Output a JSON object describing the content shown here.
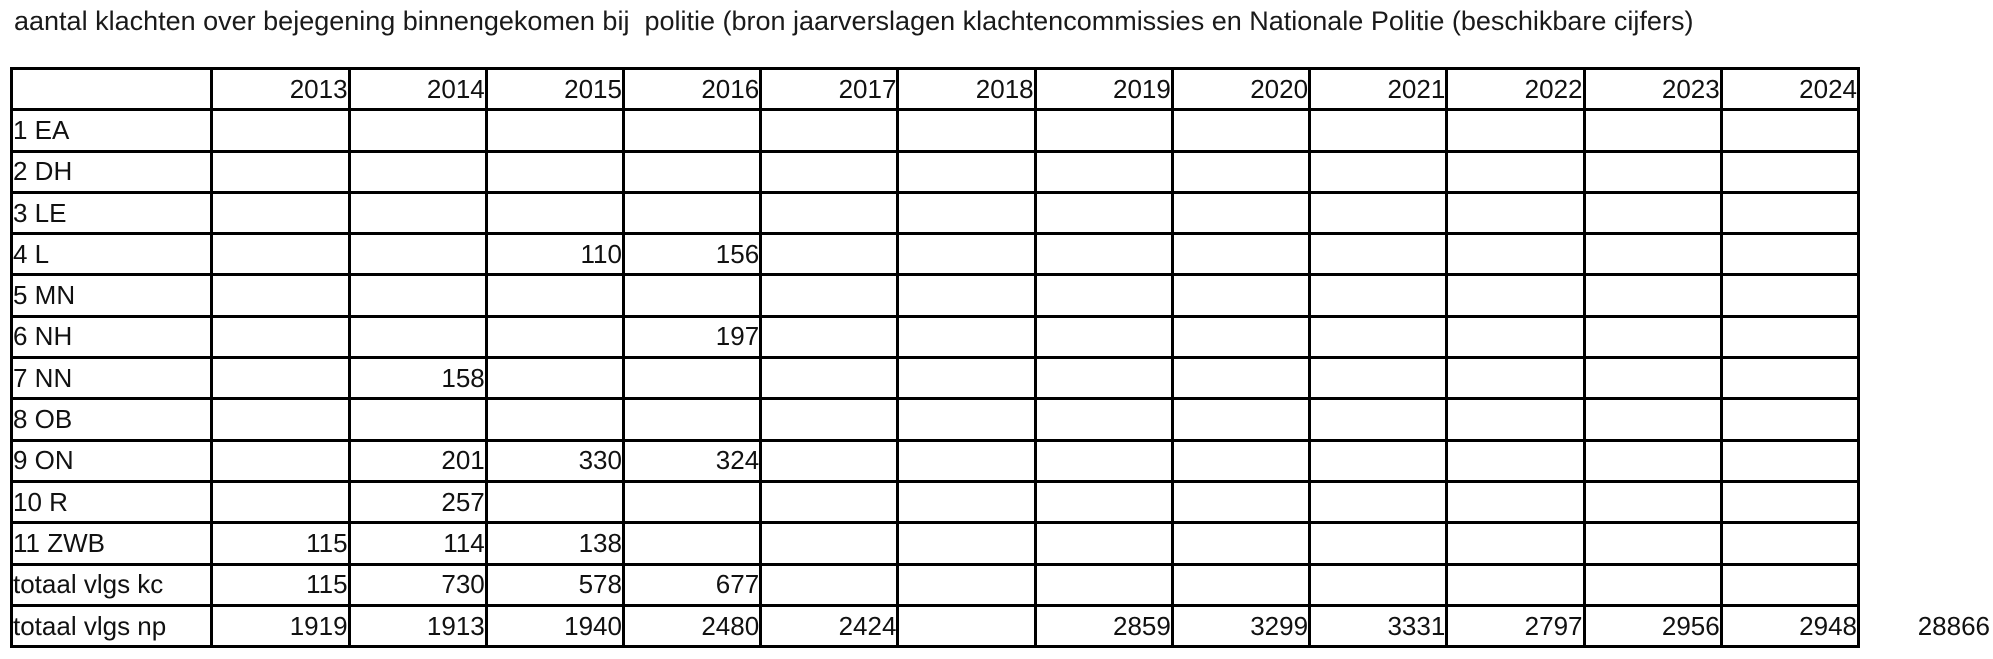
{
  "title": "aantal klachten over bejegening binnengekomen bij  politie (bron jaarverslagen klachtencommissies en Nationale Politie (beschikbare cijfers)",
  "grand_total": "28866",
  "colors": {
    "background": "#ffffff",
    "text": "#1a1a1a",
    "border": "#000000"
  },
  "chart_data": {
    "type": "table",
    "title": "aantal klachten over bejegening binnengekomen bij politie",
    "source_note": "bron jaarverslagen klachtencommissies en Nationale Politie (beschikbare cijfers)",
    "corner_label": "",
    "years": [
      "2013",
      "2014",
      "2015",
      "2016",
      "2017",
      "2018",
      "2019",
      "2020",
      "2021",
      "2022",
      "2023",
      "2024"
    ],
    "rows": [
      {
        "label": "1 EA",
        "values": [
          "",
          "",
          "",
          "",
          "",
          "",
          "",
          "",
          "",
          "",
          "",
          ""
        ]
      },
      {
        "label": "2 DH",
        "values": [
          "",
          "",
          "",
          "",
          "",
          "",
          "",
          "",
          "",
          "",
          "",
          ""
        ]
      },
      {
        "label": "3 LE",
        "values": [
          "",
          "",
          "",
          "",
          "",
          "",
          "",
          "",
          "",
          "",
          "",
          ""
        ]
      },
      {
        "label": "4 L",
        "values": [
          "",
          "",
          "110",
          "156",
          "",
          "",
          "",
          "",
          "",
          "",
          "",
          ""
        ]
      },
      {
        "label": "5 MN",
        "values": [
          "",
          "",
          "",
          "",
          "",
          "",
          "",
          "",
          "",
          "",
          "",
          ""
        ]
      },
      {
        "label": "6 NH",
        "values": [
          "",
          "",
          "",
          "197",
          "",
          "",
          "",
          "",
          "",
          "",
          "",
          ""
        ]
      },
      {
        "label": "7 NN",
        "values": [
          "",
          "158",
          "",
          "",
          "",
          "",
          "",
          "",
          "",
          "",
          "",
          ""
        ]
      },
      {
        "label": "8 OB",
        "values": [
          "",
          "",
          "",
          "",
          "",
          "",
          "",
          "",
          "",
          "",
          "",
          ""
        ]
      },
      {
        "label": "9 ON",
        "values": [
          "",
          "201",
          "330",
          "324",
          "",
          "",
          "",
          "",
          "",
          "",
          "",
          ""
        ]
      },
      {
        "label": "10 R",
        "values": [
          "",
          "257",
          "",
          "",
          "",
          "",
          "",
          "",
          "",
          "",
          "",
          ""
        ]
      },
      {
        "label": "11 ZWB",
        "values": [
          "115",
          "114",
          "138",
          "",
          "",
          "",
          "",
          "",
          "",
          "",
          "",
          ""
        ]
      },
      {
        "label": "totaal vlgs kc",
        "values": [
          "115",
          "730",
          "578",
          "677",
          "",
          "",
          "",
          "",
          "",
          "",
          "",
          ""
        ]
      },
      {
        "label": "totaal vlgs np",
        "values": [
          "1919",
          "1913",
          "1940",
          "2480",
          "2424",
          "",
          "2859",
          "3299",
          "3331",
          "2797",
          "2956",
          "2948"
        ]
      }
    ]
  }
}
